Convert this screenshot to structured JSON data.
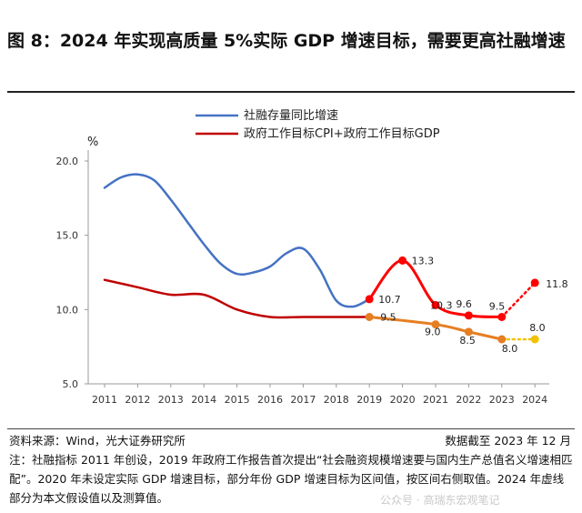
{
  "title": "图 8：2024 年实现高质量 5%实际 GDP 增速目标，需要更高社融增速",
  "source": "资料来源：Wind，光大证券研究所",
  "cutoff": "数据截至 2023 年 12 月",
  "note": "注：社融指标 2011 年创设，2019 年政府工作报告首次提出“社会融资规模增速要与国内生产总值名义增速相匹配”。2020 年未设定实际 GDP 增速目标，部分年份 GDP 增速目标为区间值，按区间右侧取值。2024 年虚线部分为本文假设值以及测算值。",
  "watermark": "公众号 · 高瑞东宏观笔记",
  "chart_data": {
    "type": "line",
    "ylabel": "%",
    "ylim": [
      5.0,
      20.0
    ],
    "yticks": [
      "5.0",
      "10.0",
      "15.0",
      "20.0"
    ],
    "categories": [
      "2011",
      "2012",
      "2013",
      "2014",
      "2015",
      "2016",
      "2017",
      "2018",
      "2019",
      "2020",
      "2021",
      "2022",
      "2023",
      "2024"
    ],
    "grid": false,
    "legend_position": "top-left",
    "series": [
      {
        "name": "社融存量同比增速",
        "color": "#4472c4",
        "x": [
          2011.0,
          2011.5,
          2012.0,
          2012.5,
          2013.0,
          2013.5,
          2014.0,
          2014.5,
          2015.0,
          2015.5,
          2016.0,
          2016.5,
          2017.0,
          2017.5,
          2018.0,
          2018.5,
          2019.0
        ],
        "values": [
          18.2,
          18.9,
          19.1,
          18.7,
          17.4,
          15.9,
          14.4,
          13.1,
          12.4,
          12.5,
          12.9,
          13.8,
          14.1,
          12.7,
          10.6,
          10.2,
          10.7
        ]
      },
      {
        "name": "政府工作目标CPI+政府工作目标GDP",
        "color": "#c00000",
        "x": [
          2011.0,
          2012.0,
          2013.0,
          2014.0,
          2015.0,
          2016.0,
          2017.0,
          2018.0,
          2019.0
        ],
        "values": [
          12.0,
          11.5,
          11.0,
          11.0,
          10.0,
          9.5,
          9.5,
          9.5,
          9.5
        ]
      }
    ],
    "highlight_series": [
      {
        "role": "社融存量同比增速",
        "color": "#ff0000",
        "x": [
          2019,
          2020,
          2021,
          2022,
          2023
        ],
        "values": [
          10.7,
          13.3,
          10.3,
          9.6,
          9.5
        ],
        "labels": [
          "10.7",
          "13.3",
          "10.3",
          "9.6",
          "9.5"
        ]
      },
      {
        "role": "社融存量同比增速（2024 假设）",
        "color": "#ff0000",
        "dashed": true,
        "x": [
          2023,
          2024
        ],
        "values": [
          9.5,
          11.8
        ],
        "labels": [
          "",
          "11.8"
        ]
      },
      {
        "role": "政府工作目标CPI+政府工作目标GDP",
        "color": "#e67e22",
        "x": [
          2019,
          2021,
          2022,
          2023
        ],
        "values": [
          9.5,
          9.0,
          8.5,
          8.0
        ],
        "labels": [
          "9.5",
          "9.0",
          "8.5",
          "8.0"
        ]
      },
      {
        "role": "政府工作目标CPI+政府工作目标GDP（2024 假设）",
        "color": "#f2c200",
        "dashed": true,
        "x": [
          2023,
          2024
        ],
        "values": [
          8.0,
          8.0
        ],
        "labels": [
          "",
          "8.0"
        ]
      }
    ]
  }
}
